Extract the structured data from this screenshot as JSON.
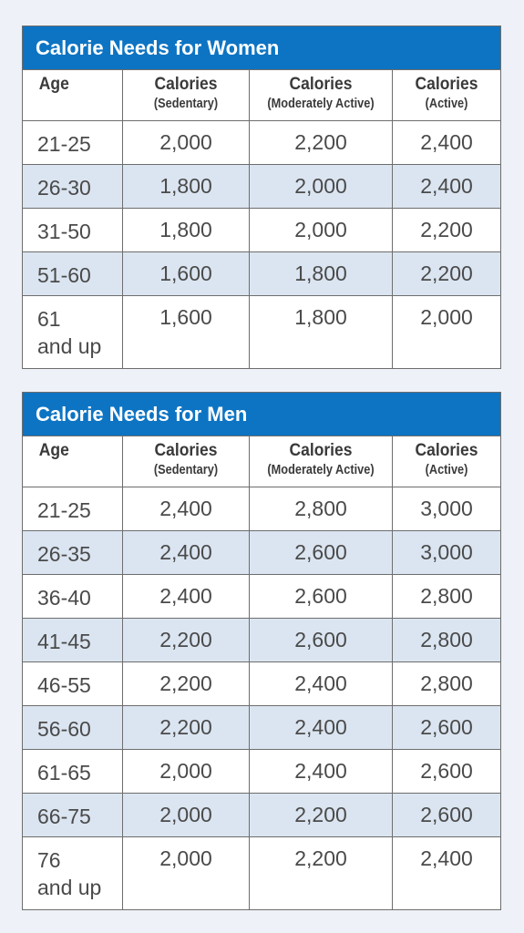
{
  "women": {
    "title": "Calorie Needs for Women",
    "headers": [
      {
        "main": "Age",
        "sub": ""
      },
      {
        "main": "Calories",
        "sub": "(Sedentary)"
      },
      {
        "main": "Calories",
        "sub": "(Moderately Active)"
      },
      {
        "main": "Calories",
        "sub": "(Active)"
      }
    ],
    "rows": [
      {
        "age": "21-25",
        "age2": "",
        "sedentary": "2,000",
        "moderate": "2,200",
        "active": "2,400"
      },
      {
        "age": "26-30",
        "age2": "",
        "sedentary": "1,800",
        "moderate": "2,000",
        "active": "2,400"
      },
      {
        "age": "31-50",
        "age2": "",
        "sedentary": "1,800",
        "moderate": "2,000",
        "active": "2,200"
      },
      {
        "age": "51-60",
        "age2": "",
        "sedentary": "1,600",
        "moderate": "1,800",
        "active": "2,200"
      },
      {
        "age": "61",
        "age2": "and up",
        "sedentary": "1,600",
        "moderate": "1,800",
        "active": "2,000"
      }
    ]
  },
  "men": {
    "title": "Calorie Needs for Men",
    "headers": [
      {
        "main": "Age",
        "sub": ""
      },
      {
        "main": "Calories",
        "sub": "(Sedentary)"
      },
      {
        "main": "Calories",
        "sub": "(Moderately Active)"
      },
      {
        "main": "Calories",
        "sub": "(Active)"
      }
    ],
    "rows": [
      {
        "age": "21-25",
        "age2": "",
        "sedentary": "2,400",
        "moderate": "2,800",
        "active": "3,000"
      },
      {
        "age": "26-35",
        "age2": "",
        "sedentary": "2,400",
        "moderate": "2,600",
        "active": "3,000"
      },
      {
        "age": "36-40",
        "age2": "",
        "sedentary": "2,400",
        "moderate": "2,600",
        "active": "2,800"
      },
      {
        "age": "41-45",
        "age2": "",
        "sedentary": "2,200",
        "moderate": "2,600",
        "active": "2,800"
      },
      {
        "age": "46-55",
        "age2": "",
        "sedentary": "2,200",
        "moderate": "2,400",
        "active": "2,800"
      },
      {
        "age": "56-60",
        "age2": "",
        "sedentary": "2,200",
        "moderate": "2,400",
        "active": "2,600"
      },
      {
        "age": "61-65",
        "age2": "",
        "sedentary": "2,000",
        "moderate": "2,400",
        "active": "2,600"
      },
      {
        "age": "66-75",
        "age2": "",
        "sedentary": "2,000",
        "moderate": "2,200",
        "active": "2,600"
      },
      {
        "age": "76",
        "age2": "and up",
        "sedentary": "2,000",
        "moderate": "2,200",
        "active": "2,400"
      }
    ]
  },
  "colors": {
    "title_bar": "#0d74c3",
    "stripe": "#dbe5f1",
    "background": "#eef1f7",
    "border": "#6d6d6d"
  }
}
